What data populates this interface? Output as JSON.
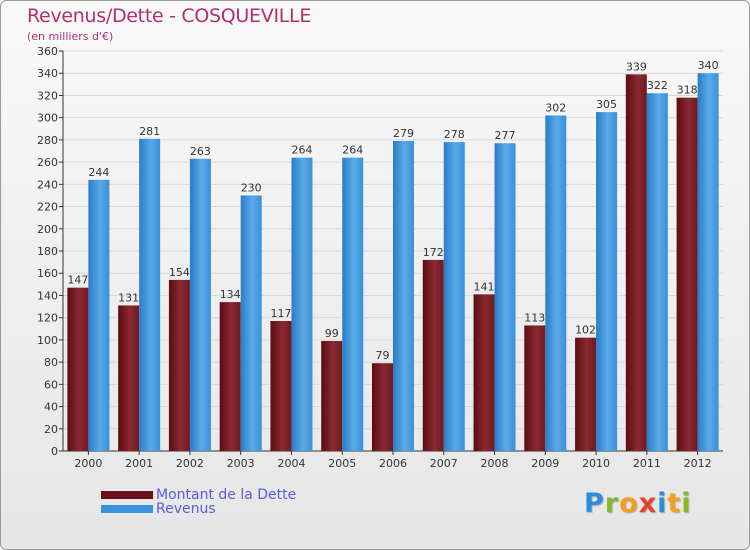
{
  "title": "Revenus/Dette - COSQUEVILLE",
  "unit_label": "(en milliers d'€)",
  "colors": {
    "title": "#b0306e",
    "dette": "#7a1c22",
    "revenus": "#3a92dc",
    "legend_text": "#5b5bd8"
  },
  "logo": {
    "text": "Proxiti",
    "letters": [
      {
        "ch": "P",
        "color": "#2a8ed8"
      },
      {
        "ch": "r",
        "color": "#8ab62c"
      },
      {
        "ch": "o",
        "color": "#f0a020"
      },
      {
        "ch": "x",
        "color": "#e8402c"
      },
      {
        "ch": "i",
        "color": "#2a8ed8"
      },
      {
        "ch": "t",
        "color": "#f0a020"
      },
      {
        "ch": "i",
        "color": "#8ab62c"
      }
    ]
  },
  "legend": [
    {
      "label": "Montant de la Dette",
      "color": "#6a1018"
    },
    {
      "label": "Revenus",
      "color": "#3a92dc"
    }
  ],
  "chart_data": {
    "type": "bar",
    "title": "Revenus/Dette - COSQUEVILLE",
    "subtitle": "(en milliers d'€)",
    "categories": [
      "2000",
      "2001",
      "2002",
      "2003",
      "2004",
      "2005",
      "2006",
      "2007",
      "2008",
      "2009",
      "2010",
      "2011",
      "2012"
    ],
    "series": [
      {
        "name": "Montant de la Dette",
        "values": [
          147,
          131,
          154,
          134,
          117,
          99,
          79,
          172,
          141,
          113,
          102,
          339,
          318
        ]
      },
      {
        "name": "Revenus",
        "values": [
          244,
          281,
          263,
          230,
          264,
          264,
          279,
          278,
          277,
          302,
          305,
          322,
          340
        ]
      }
    ],
    "ylim": [
      0,
      360
    ],
    "yticks": [
      0,
      20,
      40,
      60,
      80,
      100,
      120,
      140,
      160,
      180,
      200,
      220,
      240,
      260,
      280,
      300,
      320,
      340,
      360
    ],
    "grid": true,
    "legend_position": "bottom-left"
  }
}
